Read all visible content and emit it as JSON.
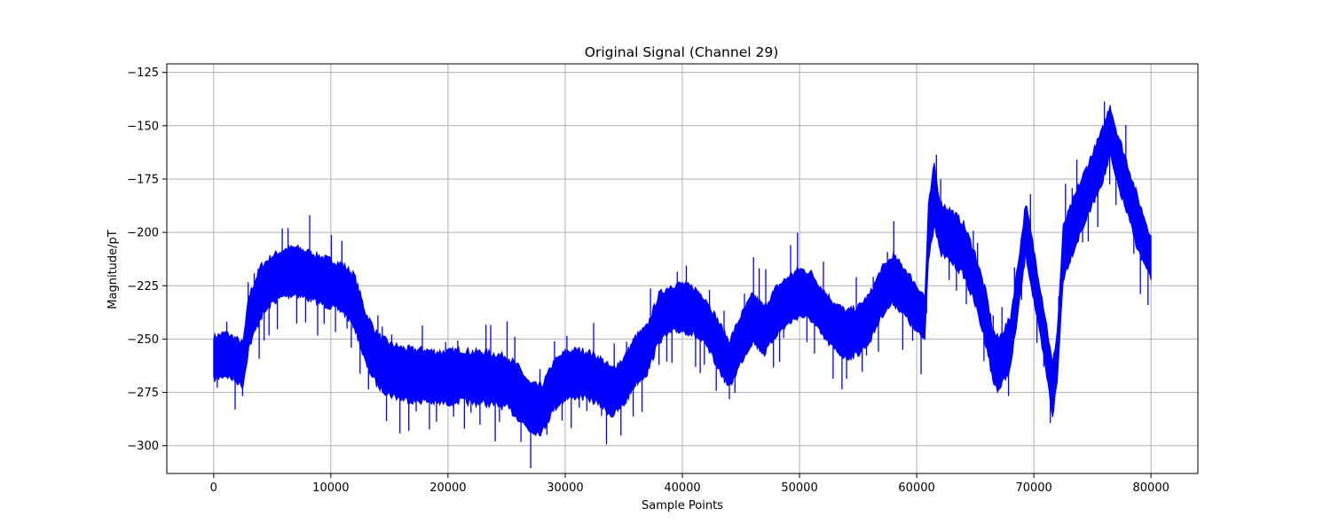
{
  "chart_data": {
    "type": "line",
    "title": "Original Signal (Channel 29)",
    "xlabel": "Sample Points",
    "ylabel": "Magnitude/pT",
    "xlim": [
      -4000,
      84000
    ],
    "ylim": [
      -313,
      -121
    ],
    "grid": true,
    "x_ticks": [
      0,
      10000,
      20000,
      30000,
      40000,
      50000,
      60000,
      70000,
      80000
    ],
    "x_tick_labels": [
      "0",
      "10000",
      "20000",
      "30000",
      "40000",
      "50000",
      "60000",
      "70000",
      "80000"
    ],
    "y_ticks": [
      -125,
      -150,
      -175,
      -200,
      -225,
      -250,
      -275,
      -300
    ],
    "y_tick_labels": [
      "−125",
      "−150",
      "−175",
      "−200",
      "−225",
      "−250",
      "−275",
      "−300"
    ],
    "series": [
      {
        "color": "#0000ff",
        "note_envelope": "approximate centre and half-width of dense oscillating signal band",
        "x": [
          0,
          1000,
          2000,
          2500,
          3000,
          4000,
          5000,
          6000,
          7000,
          8000,
          9000,
          10000,
          11000,
          12000,
          13000,
          14000,
          15000,
          16000,
          17000,
          18000,
          19000,
          20000,
          21000,
          22000,
          23000,
          24000,
          25000,
          26000,
          27000,
          28000,
          29000,
          30000,
          31000,
          32000,
          33000,
          34000,
          35000,
          36000,
          37000,
          38000,
          39000,
          40000,
          41000,
          42000,
          43000,
          44000,
          45000,
          46000,
          47000,
          48000,
          49000,
          50000,
          51000,
          52000,
          53000,
          54000,
          55000,
          56000,
          57000,
          58000,
          59000,
          60000,
          60700,
          61000,
          61500,
          62000,
          63000,
          64000,
          65000,
          66000,
          66500,
          67000,
          68000,
          69000,
          69300,
          70000,
          71000,
          71600,
          72000,
          72500,
          73000,
          74000,
          75000,
          76000,
          76500,
          77000,
          78000,
          79000,
          80000
        ],
        "center": [
          -259,
          -257,
          -260,
          -262,
          -242,
          -228,
          -222,
          -219,
          -218,
          -220,
          -222,
          -224,
          -226,
          -232,
          -250,
          -260,
          -264,
          -266,
          -267,
          -267,
          -268,
          -268,
          -267,
          -268,
          -268,
          -269,
          -270,
          -275,
          -282,
          -283,
          -272,
          -267,
          -266,
          -267,
          -270,
          -275,
          -270,
          -260,
          -255,
          -240,
          -236,
          -235,
          -237,
          -242,
          -252,
          -262,
          -250,
          -240,
          -246,
          -237,
          -232,
          -228,
          -230,
          -238,
          -244,
          -248,
          -246,
          -240,
          -228,
          -222,
          -228,
          -236,
          -240,
          -200,
          -182,
          -198,
          -202,
          -208,
          -222,
          -242,
          -258,
          -262,
          -252,
          -212,
          -198,
          -220,
          -252,
          -274,
          -258,
          -210,
          -202,
          -188,
          -175,
          -162,
          -152,
          -163,
          -180,
          -198,
          -212
        ],
        "half_width": [
          10,
          10,
          10,
          10,
          12,
          12,
          11,
          11,
          11,
          11,
          11,
          11,
          11,
          12,
          12,
          12,
          12,
          12,
          12,
          12,
          12,
          12,
          12,
          12,
          12,
          12,
          12,
          12,
          11,
          11,
          11,
          11,
          11,
          11,
          11,
          11,
          11,
          11,
          11,
          11,
          11,
          11,
          11,
          11,
          11,
          11,
          11,
          11,
          11,
          11,
          11,
          11,
          11,
          11,
          11,
          11,
          11,
          11,
          11,
          11,
          11,
          11,
          10,
          12,
          14,
          12,
          12,
          12,
          12,
          12,
          12,
          12,
          12,
          12,
          12,
          12,
          12,
          12,
          12,
          12,
          12,
          12,
          12,
          12,
          12,
          12,
          12,
          12,
          10
        ]
      }
    ]
  }
}
